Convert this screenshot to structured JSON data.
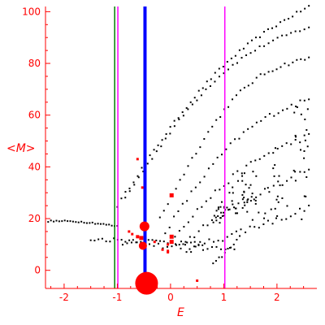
{
  "chart_data": {
    "type": "scatter",
    "xlabel": "E",
    "ylabel": "<M>",
    "xlim": [
      -2.35,
      2.75
    ],
    "ylim": [
      -7,
      102
    ],
    "x_ticks": [
      -2,
      -1,
      0,
      1,
      2
    ],
    "y_ticks": [
      0,
      20,
      40,
      60,
      80,
      100
    ],
    "grid": false,
    "colors": {
      "axes": "#ff0000",
      "dots": "#000000",
      "markers": "#ff0000",
      "line_green": "#008000",
      "line_magenta": "#ff00ff",
      "line_blue": "#0000ff"
    },
    "vertical_lines": [
      {
        "x": -1.05,
        "color": "#008000",
        "width": 1.5
      },
      {
        "x": -0.99,
        "color": "#ff00ff",
        "width": 1.5
      },
      {
        "x": -0.48,
        "color": "#0000ff",
        "width": 4
      },
      {
        "x": 1.02,
        "color": "#ff00ff",
        "width": 1.5
      }
    ],
    "black_curves": [
      {
        "x0": -1.0,
        "y0": 25,
        "x1": 2.6,
        "y1": 102,
        "n": 48,
        "bend": 0.15,
        "jitter": 0.6
      },
      {
        "x0": -0.85,
        "y0": 28,
        "x1": 2.6,
        "y1": 94,
        "n": 42,
        "bend": 0.2,
        "jitter": 0.6
      },
      {
        "x0": -0.2,
        "y0": 20,
        "x1": 2.6,
        "y1": 82,
        "n": 38,
        "bend": 0.25,
        "jitter": 0.8
      },
      {
        "x0": -0.1,
        "y0": 15,
        "x1": 2.6,
        "y1": 66,
        "n": 34,
        "bend": 0.2,
        "jitter": 1.0
      },
      {
        "x0": 0.0,
        "y0": 12,
        "x1": 2.6,
        "y1": 52,
        "n": 32,
        "bend": 0.15,
        "jitter": 1.2
      },
      {
        "x0": 0.2,
        "y0": 10,
        "x1": 2.6,
        "y1": 38,
        "n": 30,
        "bend": 0.1,
        "jitter": 1.5
      },
      {
        "x0": 0.3,
        "y0": 8,
        "x1": 2.6,
        "y1": 24,
        "n": 28,
        "bend": 0.0,
        "jitter": 1.5
      },
      {
        "x0": -2.3,
        "y0": 19,
        "x1": -1.0,
        "y1": 17,
        "n": 26,
        "bend": -0.35,
        "jitter": 0.3
      },
      {
        "x0": -1.5,
        "y0": 12,
        "x1": 0.6,
        "y1": 10,
        "n": 30,
        "bend": -0.2,
        "jitter": 0.8
      },
      {
        "x0": -0.9,
        "y0": 10,
        "x1": 1.2,
        "y1": 8,
        "n": 26,
        "bend": -0.1,
        "jitter": 1.0
      },
      {
        "x0": 0.8,
        "y0": 2,
        "x1": 1.3,
        "y1": 13,
        "n": 10,
        "bend": 0.0,
        "jitter": 0.8
      }
    ],
    "black_scatter": {
      "x_range": [
        0.8,
        2.6
      ],
      "y_range": [
        18,
        65
      ],
      "n": 90
    },
    "red_circles": [
      {
        "x": -0.49,
        "y": 17,
        "r": 6
      },
      {
        "x": -0.52,
        "y": 9.5,
        "r": 5
      },
      {
        "x": -0.45,
        "y": -5,
        "r": 14
      }
    ],
    "red_squares": [
      {
        "x": 0.02,
        "y": 29,
        "s": 5
      },
      {
        "x": -0.62,
        "y": 13,
        "s": 4
      },
      {
        "x": -0.55,
        "y": 12.5,
        "s": 5
      },
      {
        "x": -0.72,
        "y": 14,
        "s": 3
      },
      {
        "x": -0.78,
        "y": 15,
        "s": 3
      },
      {
        "x": 0.02,
        "y": 13,
        "s": 5
      },
      {
        "x": 0.02,
        "y": 11,
        "s": 5
      },
      {
        "x": -0.05,
        "y": 10,
        "s": 3
      },
      {
        "x": -0.15,
        "y": 8,
        "s": 3
      },
      {
        "x": -0.05,
        "y": 7.5,
        "s": 3
      },
      {
        "x": -0.05,
        "y": 7,
        "s": 3
      },
      {
        "x": -0.53,
        "y": 32,
        "s": 3
      },
      {
        "x": -0.62,
        "y": 43,
        "s": 3
      },
      {
        "x": -0.3,
        "y": 11,
        "s": 3
      },
      {
        "x": 0.5,
        "y": -4,
        "s": 3
      }
    ]
  }
}
